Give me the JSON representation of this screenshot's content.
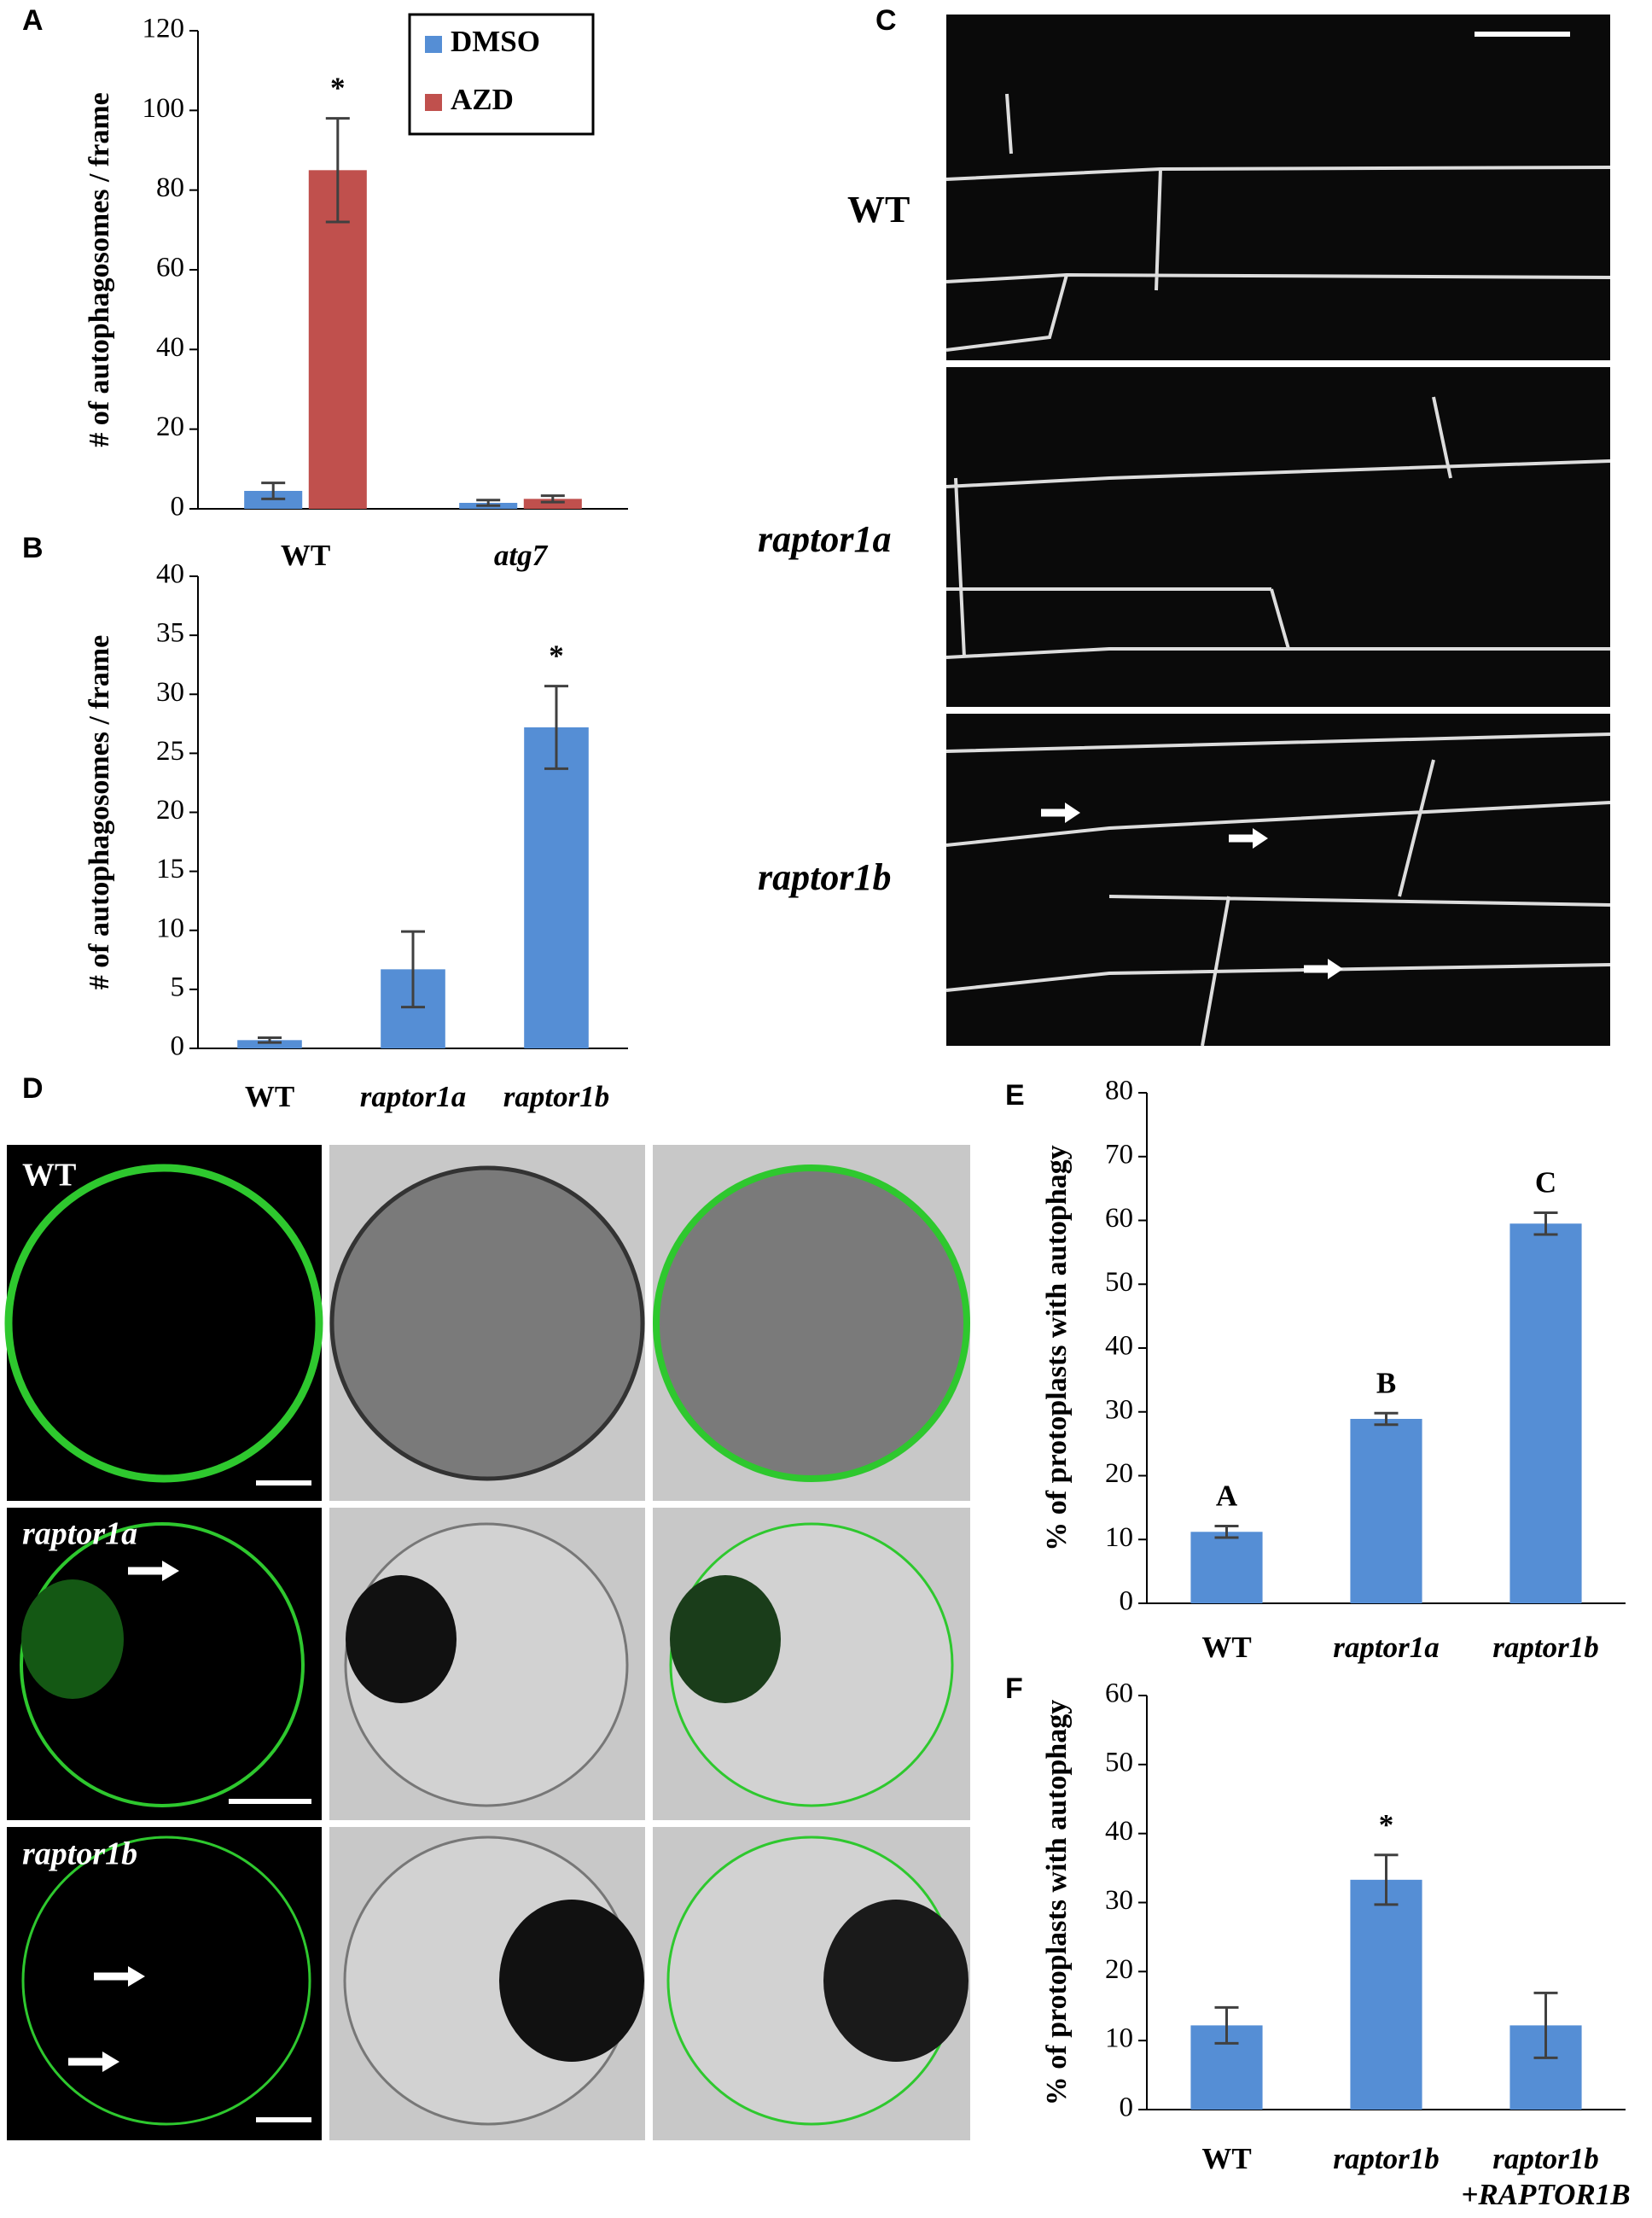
{
  "chart_data": [
    {
      "type": "bar",
      "panel": "A",
      "ylabel": "# of autophagosomes / frame",
      "categories": [
        "WT",
        "atg7"
      ],
      "category_style": [
        "normal",
        "italic"
      ],
      "series": [
        {
          "name": "DMSO",
          "color": "#558ed5",
          "values": [
            4.5,
            1.5
          ],
          "errors": [
            2,
            0.7
          ]
        },
        {
          "name": "AZD",
          "color": "#c0504d",
          "values": [
            85,
            2.5
          ],
          "errors": [
            13,
            0.8
          ],
          "annotations": [
            "*",
            null
          ]
        }
      ],
      "ylim": [
        0,
        120
      ],
      "yticks": [
        0,
        20,
        40,
        60,
        80,
        100,
        120
      ],
      "legend": "top-right"
    },
    {
      "type": "bar",
      "panel": "B",
      "ylabel": "# of autophagosomes / frame",
      "categories": [
        "WT",
        "raptor1a",
        "raptor1b"
      ],
      "category_style": [
        "normal",
        "italic",
        "italic"
      ],
      "color": "#558ed5",
      "values": [
        0.7,
        6.7,
        27.2
      ],
      "errors": [
        0.2,
        3.2,
        3.5
      ],
      "annotations": [
        null,
        null,
        "*"
      ],
      "ylim": [
        0,
        40
      ],
      "yticks": [
        0,
        5,
        10,
        15,
        20,
        25,
        30,
        35,
        40
      ]
    },
    {
      "type": "bar",
      "panel": "E",
      "ylabel": "% of protoplasts with autophagy",
      "categories": [
        "WT",
        "raptor1a",
        "raptor1b"
      ],
      "category_style": [
        "normal",
        "italic",
        "italic"
      ],
      "color": "#558ed5",
      "values": [
        11.2,
        28.9,
        59.5
      ],
      "errors": [
        0.9,
        0.9,
        1.7
      ],
      "annotations": [
        "A",
        "B",
        "C"
      ],
      "ylim": [
        0,
        80
      ],
      "yticks": [
        0,
        10,
        20,
        30,
        40,
        50,
        60,
        70,
        80
      ]
    },
    {
      "type": "bar",
      "panel": "F",
      "ylabel": "% of protoplasts with autophagy",
      "categories": [
        "WT",
        "raptor1b",
        [
          "raptor1b",
          "+RAPTOR1B"
        ]
      ],
      "category_style": [
        "normal",
        "italic",
        "italic"
      ],
      "color": "#558ed5",
      "values": [
        12.2,
        33.3,
        12.2
      ],
      "errors": [
        2.6,
        3.6,
        4.7
      ],
      "annotations": [
        null,
        "*",
        null
      ],
      "ylim": [
        0,
        60
      ],
      "yticks": [
        0,
        10,
        20,
        30,
        40,
        50,
        60
      ]
    }
  ],
  "panel_c": {
    "letter": "C",
    "labels": [
      "WT",
      "raptor1a",
      "raptor1b"
    ]
  },
  "panel_d": {
    "letter": "D",
    "labels": [
      "WT",
      "raptor1a",
      "raptor1b"
    ]
  }
}
